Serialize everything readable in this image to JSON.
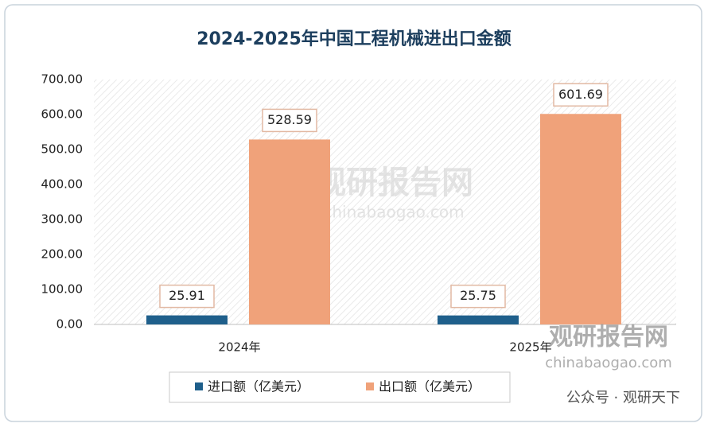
{
  "chart_data": {
    "type": "bar",
    "title": "2024-2025年中国工程机械进出口金额",
    "categories": [
      "2024年",
      "2025年"
    ],
    "series": [
      {
        "name": "进口额（亿美元）",
        "color": "#1f5f8b",
        "values": [
          25.91,
          25.75
        ]
      },
      {
        "name": "出口额（亿美元）",
        "color": "#f0a27a",
        "values": [
          528.59,
          601.69
        ]
      }
    ],
    "ylim": [
      0,
      700
    ],
    "yticks": [
      {
        "value": 0,
        "label": "0.00"
      },
      {
        "value": 100,
        "label": "100.00"
      },
      {
        "value": 200,
        "label": "200.00"
      },
      {
        "value": 300,
        "label": "300.00"
      },
      {
        "value": 400,
        "label": "400.00"
      },
      {
        "value": 500,
        "label": "500.00"
      },
      {
        "value": 600,
        "label": "600.00"
      },
      {
        "value": 700,
        "label": "700.00"
      }
    ],
    "legend": "bottom",
    "annotations": [
      "观研报告网",
      "chinabaogao.com",
      "观研报告网",
      "chinabaogao.com",
      "公众号 · 观研天下"
    ]
  }
}
